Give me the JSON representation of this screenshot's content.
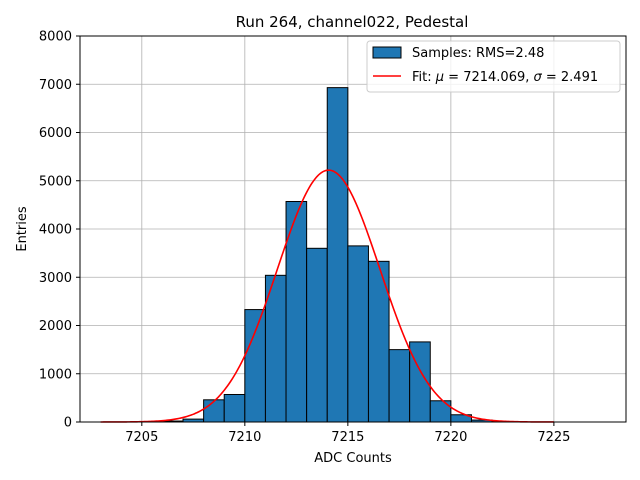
{
  "chart_data": {
    "type": "bar",
    "title": "Run 264, channel022, Pedestal",
    "xlabel": "ADC Counts",
    "ylabel": "Entries",
    "xlim": [
      7202,
      7228.5
    ],
    "ylim": [
      0,
      8000
    ],
    "xticks": [
      7205,
      7210,
      7215,
      7220,
      7225
    ],
    "yticks": [
      0,
      1000,
      2000,
      3000,
      4000,
      5000,
      6000,
      7000,
      8000
    ],
    "grid": true,
    "legend_position": "top-right",
    "histogram": {
      "name": "Samples: RMS=2.48",
      "color": "#1f77b4",
      "edgecolor": "#000000",
      "bin_width": 1,
      "bin_starts": [
        7205,
        7206,
        7207,
        7208,
        7209,
        7210,
        7211,
        7212,
        7213,
        7214,
        7215,
        7216,
        7217,
        7218,
        7219,
        7220,
        7221,
        7222
      ],
      "counts": [
        5,
        20,
        60,
        460,
        570,
        2330,
        3040,
        4570,
        3600,
        6930,
        3650,
        3330,
        1500,
        1660,
        440,
        150,
        40,
        10
      ]
    },
    "fit": {
      "name": "Fit: μ = 7214.069, σ = 2.491",
      "name_parts": {
        "prefix": "Fit: ",
        "mu_symbol": "μ",
        "mu_text": " = 7214.069, ",
        "sigma_symbol": "σ",
        "sigma_text": " = 2.491"
      },
      "color": "#ff0000",
      "mu": 7214.069,
      "sigma": 2.491,
      "amplitude": 5220,
      "x_range": [
        7203,
        7225
      ]
    }
  }
}
